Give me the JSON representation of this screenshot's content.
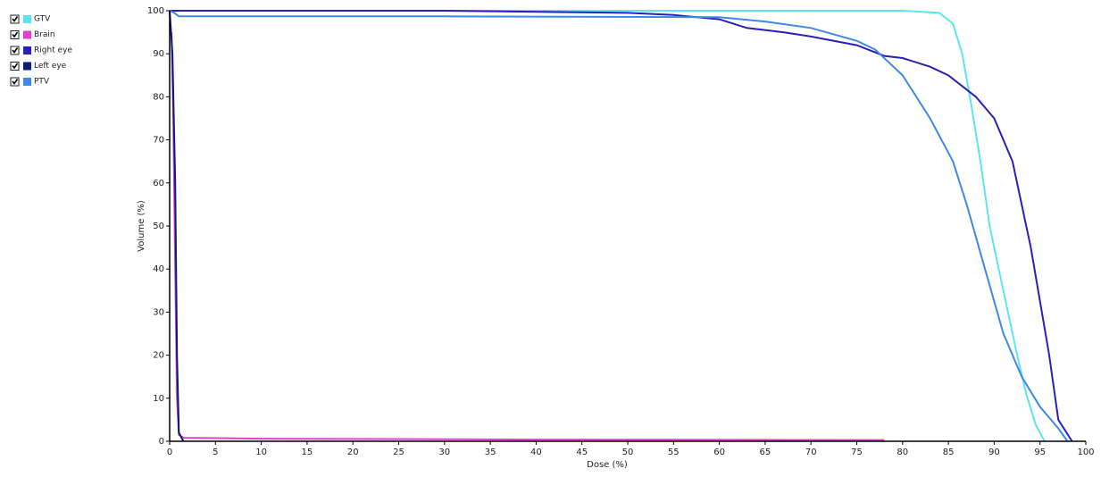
{
  "chart_data": {
    "type": "line",
    "xlabel": "Dose (%)",
    "ylabel": "Volume (%)",
    "xlim": [
      0,
      100
    ],
    "ylim": [
      0,
      100
    ],
    "xticks": [
      0,
      5,
      10,
      15,
      20,
      25,
      30,
      35,
      40,
      45,
      50,
      55,
      60,
      65,
      70,
      75,
      80,
      85,
      90,
      95,
      100
    ],
    "yticks": [
      0,
      10,
      20,
      30,
      40,
      50,
      60,
      70,
      80,
      90,
      100
    ],
    "series": [
      {
        "name": "GTV",
        "color": "#5fe3f2",
        "x": [
          0,
          60,
          80,
          84,
          85.5,
          86.5,
          87.5,
          88.5,
          89.5,
          90.5,
          91.5,
          92.5,
          93.5,
          94.5,
          95.5
        ],
        "values": [
          100,
          100,
          100,
          99.5,
          97,
          90,
          78,
          65,
          50,
          40,
          30,
          20,
          11,
          4,
          0
        ]
      },
      {
        "name": "Brain",
        "color": "#e040c8",
        "x": [
          0.2,
          0.4,
          0.6,
          0.8,
          1,
          1.5,
          10,
          40,
          78
        ],
        "values": [
          95,
          75,
          40,
          10,
          1.5,
          0.8,
          0.6,
          0.4,
          0.3
        ]
      },
      {
        "name": "Right eye",
        "color": "#2a1fb8",
        "x": [
          0,
          30,
          50,
          55,
          60,
          63,
          67,
          70,
          75,
          78,
          80,
          83,
          85,
          88,
          90,
          92,
          94,
          96,
          97,
          98.5
        ],
        "values": [
          100,
          100,
          99.5,
          99,
          98,
          96,
          95,
          94,
          92,
          89.5,
          89,
          87,
          85,
          80,
          75,
          65,
          45,
          20,
          5,
          0
        ]
      },
      {
        "name": "Left eye",
        "color": "#0c1a7a",
        "x": [
          0,
          0.3,
          0.6,
          0.8,
          1,
          1.5
        ],
        "values": [
          100,
          90,
          60,
          20,
          2,
          0
        ]
      },
      {
        "name": "PTV",
        "color": "#3d8ae6",
        "x": [
          0,
          0.5,
          1,
          30,
          60,
          65,
          70,
          75,
          77,
          80,
          83,
          85.5,
          87,
          89,
          91,
          93,
          95,
          97,
          98
        ],
        "values": [
          100,
          99.5,
          98.7,
          98.7,
          98.5,
          97.5,
          96,
          93,
          91,
          85,
          75,
          65,
          55,
          40,
          25,
          15,
          8,
          3,
          0
        ]
      }
    ]
  }
}
